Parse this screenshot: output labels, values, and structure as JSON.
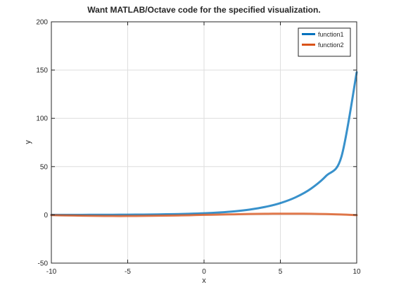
{
  "chart_data": {
    "type": "line",
    "title": "Want MATLAB/Octave code for the specified visualization.",
    "xlabel": "x",
    "ylabel": "y",
    "xlim": [
      -10,
      10
    ],
    "ylim": [
      -50,
      200
    ],
    "xticks": [
      -10,
      -5,
      0,
      5,
      10
    ],
    "yticks": [
      -50,
      0,
      50,
      100,
      150,
      200
    ],
    "grid": true,
    "legend_position": "top-right",
    "x": [
      -10,
      -9,
      -8,
      -7,
      -6,
      -5,
      -4,
      -3,
      -2,
      -1,
      0,
      1,
      2,
      3,
      4,
      5,
      6,
      7,
      8,
      9,
      10
    ],
    "series": [
      {
        "name": "function1",
        "color": "#0072BD",
        "values": [
          0.02,
          0.04,
          0.06,
          0.1,
          0.15,
          0.22,
          0.33,
          0.5,
          0.74,
          1.1,
          1.65,
          2.5,
          3.7,
          5.5,
          8.2,
          12.2,
          18.2,
          27.1,
          40.4,
          60.3,
          147.8
        ]
      },
      {
        "name": "function2",
        "color": "#D95319",
        "values": [
          -0.3,
          -0.6,
          -0.9,
          -1.1,
          -1.2,
          -1.2,
          -1.1,
          -0.9,
          -0.7,
          -0.4,
          0.0,
          0.3,
          0.6,
          0.9,
          1.1,
          1.2,
          1.2,
          1.1,
          0.8,
          0.4,
          -0.3
        ]
      }
    ]
  }
}
